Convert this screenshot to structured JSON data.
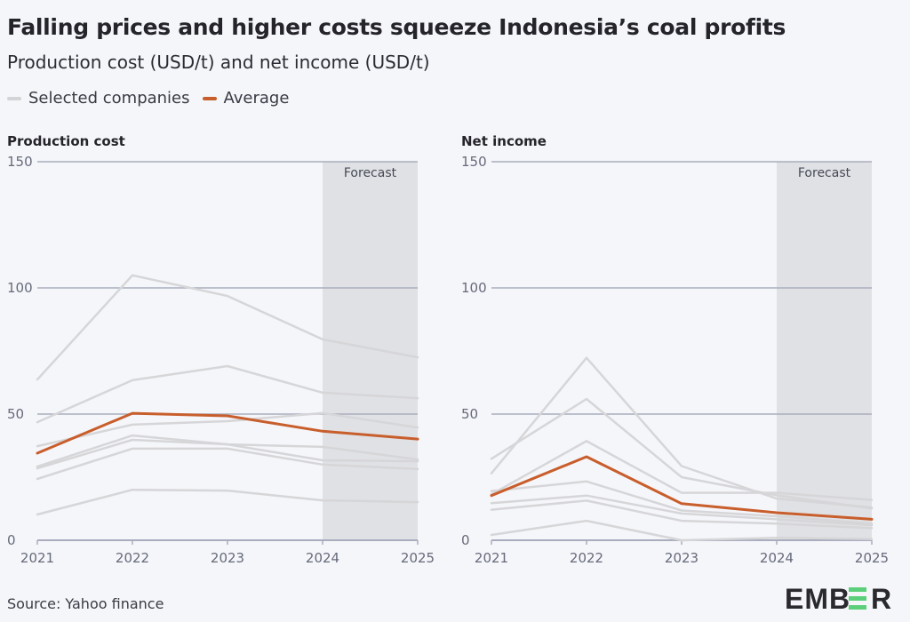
{
  "title": "Falling prices and higher costs squeeze Indonesia’s coal profits",
  "subtitle": "Production cost (USD/t) and net income (USD/t)",
  "legend": [
    {
      "label": "Selected companies",
      "color": "#d4d4d6"
    },
    {
      "label": "Average",
      "color": "#c85e2c"
    }
  ],
  "source": "Source: Yahoo finance",
  "logo_text": "EMBER",
  "colors": {
    "background": "#f5f6fa",
    "forecast_shade": "#e0e1e5",
    "grid": "#a9adbd",
    "company": "#d6d6d8",
    "average": "#c85e2c",
    "logo_accent": "#5ccf7a"
  },
  "chart_data": [
    {
      "type": "line",
      "title": "Production cost",
      "x": [
        2021,
        2022,
        2023,
        2024,
        2025
      ],
      "x_tick_labels": [
        "2021",
        "2022",
        "2023",
        "2024",
        "2025"
      ],
      "y_ticks": [
        0,
        50,
        100,
        150
      ],
      "ylim": [
        0,
        150
      ],
      "grid": true,
      "forecast_region": {
        "label": "Forecast",
        "from": 2024,
        "to": 2025
      },
      "series": [
        {
          "group": "Selected companies",
          "values": [
            63.7,
            105,
            96.8,
            79.6,
            72.5
          ]
        },
        {
          "group": "Selected companies",
          "values": [
            46.8,
            63.4,
            69,
            58.5,
            56.3
          ]
        },
        {
          "group": "Selected companies",
          "values": [
            37.3,
            45.8,
            47.2,
            50.4,
            44.7
          ]
        },
        {
          "group": "Selected companies",
          "values": [
            29.2,
            41.5,
            38,
            37,
            32
          ]
        },
        {
          "group": "Selected companies",
          "values": [
            28.5,
            39.8,
            38,
            31.7,
            31.3
          ]
        },
        {
          "group": "Selected companies",
          "values": [
            24.3,
            36.3,
            36.3,
            30,
            28.2
          ]
        },
        {
          "group": "Selected companies",
          "values": [
            10.2,
            20,
            19.7,
            15.8,
            15.1
          ]
        },
        {
          "name": "Average",
          "values": [
            34.5,
            50.3,
            49.3,
            43.2,
            40.1
          ]
        }
      ]
    },
    {
      "type": "line",
      "title": "Net income",
      "x": [
        2021,
        2022,
        2023,
        2024,
        2025
      ],
      "x_tick_labels": [
        "2021",
        "2022",
        "2023",
        "2024",
        "2025"
      ],
      "y_ticks": [
        0,
        50,
        100,
        150
      ],
      "ylim": [
        0,
        150
      ],
      "grid": true,
      "forecast_region": {
        "label": "Forecast",
        "from": 2024,
        "to": 2025
      },
      "series": [
        {
          "group": "Selected companies",
          "values": [
            26.5,
            72.3,
            29.4,
            16.5,
            13
          ]
        },
        {
          "group": "Selected companies",
          "values": [
            32.3,
            56,
            25,
            17.8,
            12.6
          ]
        },
        {
          "group": "Selected companies",
          "values": [
            18.2,
            39.3,
            18.8,
            18.8,
            16
          ]
        },
        {
          "group": "Selected companies",
          "values": [
            19.5,
            23.3,
            11.8,
            9.5,
            6.6
          ]
        },
        {
          "group": "Selected companies",
          "values": [
            14.7,
            17.7,
            10.6,
            8.3,
            6
          ]
        },
        {
          "group": "Selected companies",
          "values": [
            12.1,
            15.7,
            7.7,
            6.6,
            4.8
          ]
        },
        {
          "group": "Selected companies",
          "values": [
            2.1,
            7.7,
            0,
            1,
            0.5
          ]
        },
        {
          "name": "Average",
          "values": [
            17.7,
            33.1,
            14.5,
            10.9,
            8.3
          ]
        }
      ]
    }
  ]
}
